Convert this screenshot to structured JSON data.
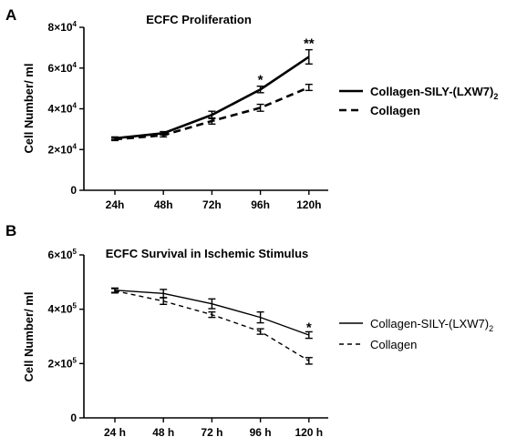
{
  "chart_data": [
    {
      "panel": "A",
      "type": "line",
      "title": "ECFC Proliferation",
      "ylabel": "Cell Number/ ml",
      "xlabel": "",
      "categories": [
        "24h",
        "48h",
        "72h",
        "96h",
        "120h"
      ],
      "ylim": [
        0,
        80000
      ],
      "yticks": [
        {
          "value": 0,
          "mant": "0",
          "exp": ""
        },
        {
          "value": 20000,
          "mant": "2×10",
          "exp": "4"
        },
        {
          "value": 40000,
          "mant": "4×10",
          "exp": "4"
        },
        {
          "value": 60000,
          "mant": "6×10",
          "exp": "4"
        },
        {
          "value": 80000,
          "mant": "8×10",
          "exp": "4"
        }
      ],
      "grid": false,
      "legend_position": "right",
      "series": [
        {
          "name": "Collagen-SILY-(LXW7)",
          "name_sub": "2",
          "style": "solid",
          "values": [
            25500,
            28000,
            37000,
            49500,
            65500
          ],
          "errors": [
            700,
            800,
            1800,
            1600,
            3500
          ]
        },
        {
          "name": "Collagen",
          "name_sub": "",
          "style": "dashed",
          "values": [
            25000,
            27000,
            34000,
            40500,
            50500
          ],
          "errors": [
            600,
            800,
            1500,
            1700,
            1500
          ]
        }
      ],
      "annotations": [
        {
          "text": "*",
          "category_index": 3
        },
        {
          "text": "**",
          "category_index": 4
        }
      ]
    },
    {
      "panel": "B",
      "type": "line",
      "title": "ECFC Survival in Ischemic Stimulus",
      "ylabel": "Cell Number/ ml",
      "xlabel": "",
      "categories": [
        "24 h",
        "48 h",
        "72 h",
        "96 h",
        "120 h"
      ],
      "ylim": [
        0,
        600000
      ],
      "yticks": [
        {
          "value": 0,
          "mant": "0",
          "exp": ""
        },
        {
          "value": 200000,
          "mant": "2×10",
          "exp": "5"
        },
        {
          "value": 400000,
          "mant": "4×10",
          "exp": "5"
        },
        {
          "value": 600000,
          "mant": "6×10",
          "exp": "5"
        }
      ],
      "grid": false,
      "legend_position": "right",
      "series": [
        {
          "name": "Collagen-SILY-(LXW7)",
          "name_sub": "2",
          "style": "solid",
          "values": [
            470000,
            458000,
            420000,
            370000,
            305000
          ],
          "errors": [
            8000,
            15000,
            18000,
            20000,
            12000
          ]
        },
        {
          "name": "Collagen",
          "name_sub": "",
          "style": "dashed",
          "values": [
            468000,
            430000,
            380000,
            318000,
            210000
          ],
          "errors": [
            8000,
            12000,
            10000,
            10000,
            12000
          ]
        }
      ],
      "annotations": [
        {
          "text": "*",
          "category_index": 4
        }
      ]
    }
  ]
}
